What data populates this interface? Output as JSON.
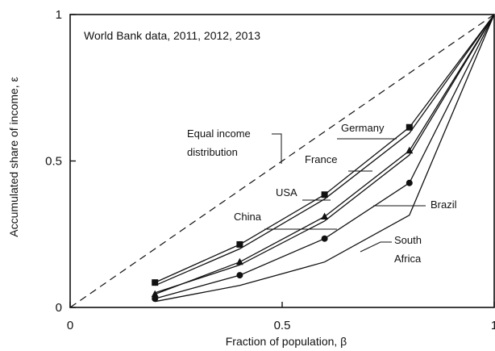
{
  "chart_data": {
    "type": "line",
    "title": "World Bank data, 2011, 2012, 2013",
    "xlabel": "Fraction of population, β",
    "ylabel": "Accumulated share of income, ε",
    "xlim": [
      0,
      1
    ],
    "ylim": [
      0,
      1
    ],
    "x_ticks": [
      "0",
      "0.5",
      "1"
    ],
    "y_ticks": [
      "0",
      "0.5",
      "1"
    ],
    "grid": false,
    "reference_line": {
      "label": "Equal income distribution",
      "label_lines": [
        "Equal income",
        "distribution"
      ],
      "x": [
        0,
        1
      ],
      "y": [
        0,
        1
      ],
      "style": "dashed"
    },
    "series": [
      {
        "name": "Germany",
        "marker": "square",
        "x": [
          0.2,
          0.4,
          0.6,
          0.8,
          1.0
        ],
        "y": [
          0.085,
          0.215,
          0.385,
          0.615,
          1.0
        ]
      },
      {
        "name": "France",
        "marker": "none",
        "x": [
          0.2,
          0.4,
          0.6,
          0.8,
          1.0
        ],
        "y": [
          0.075,
          0.2,
          0.37,
          0.595,
          1.0
        ]
      },
      {
        "name": "USA",
        "marker": "triangle",
        "x": [
          0.2,
          0.4,
          0.6,
          0.8,
          1.0
        ],
        "y": [
          0.045,
          0.155,
          0.31,
          0.535,
          1.0
        ]
      },
      {
        "name": "China",
        "marker": "none",
        "x": [
          0.2,
          0.4,
          0.6,
          0.8,
          1.0
        ],
        "y": [
          0.05,
          0.145,
          0.295,
          0.52,
          1.0
        ]
      },
      {
        "name": "Brazil",
        "marker": "circle",
        "x": [
          0.2,
          0.4,
          0.6,
          0.8,
          1.0
        ],
        "y": [
          0.03,
          0.11,
          0.235,
          0.425,
          1.0
        ]
      },
      {
        "name": "South Africa",
        "label_lines": [
          "South",
          "Africa"
        ],
        "marker": "none",
        "x": [
          0.2,
          0.4,
          0.6,
          0.8,
          1.0
        ],
        "y": [
          0.02,
          0.075,
          0.155,
          0.315,
          1.0
        ]
      }
    ]
  }
}
